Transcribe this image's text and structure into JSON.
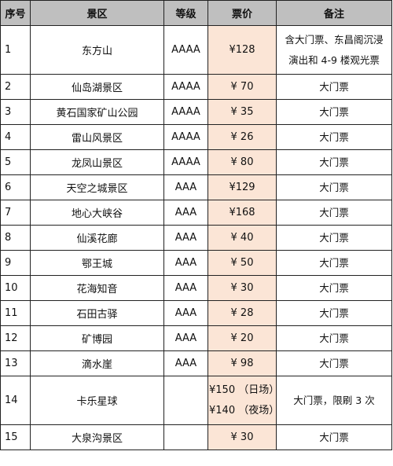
{
  "table": {
    "headers": {
      "no": "序号",
      "name": "景区",
      "level": "等级",
      "price": "票价",
      "note": "备注"
    },
    "rows": [
      {
        "no": "1",
        "name": "东方山",
        "level": "AAAA",
        "price": [
          "¥128"
        ],
        "note": [
          "含大门票、东昌阁沉浸",
          "演出和 4-9 楼观光票"
        ]
      },
      {
        "no": "2",
        "name": "仙岛湖景区",
        "level": "AAAA",
        "price": [
          "¥ 70"
        ],
        "note": [
          "大门票"
        ]
      },
      {
        "no": "3",
        "name": "黄石国家矿山公园",
        "level": "AAAA",
        "price": [
          "¥ 35"
        ],
        "note": [
          "大门票"
        ]
      },
      {
        "no": "4",
        "name": "雷山风景区",
        "level": "AAAA",
        "price": [
          "¥ 26"
        ],
        "note": [
          "大门票"
        ]
      },
      {
        "no": "5",
        "name": "龙凤山景区",
        "level": "AAAA",
        "price": [
          "¥ 80"
        ],
        "note": [
          "大门票"
        ]
      },
      {
        "no": "6",
        "name": "天空之城景区",
        "level": "AAA",
        "price": [
          "¥129"
        ],
        "note": [
          "大门票"
        ]
      },
      {
        "no": "7",
        "name": "地心大峡谷",
        "level": "AAA",
        "price": [
          "¥168"
        ],
        "note": [
          "大门票"
        ]
      },
      {
        "no": "8",
        "name": "仙溪花廊",
        "level": "AAA",
        "price": [
          "¥ 40"
        ],
        "note": [
          "大门票"
        ]
      },
      {
        "no": "9",
        "name": "鄂王城",
        "level": "AAA",
        "price": [
          "¥ 50"
        ],
        "note": [
          "大门票"
        ]
      },
      {
        "no": "10",
        "name": "花海知音",
        "level": "AAA",
        "price": [
          "¥ 30"
        ],
        "note": [
          "大门票"
        ]
      },
      {
        "no": "11",
        "name": "石田古驿",
        "level": "AAA",
        "price": [
          "¥ 28"
        ],
        "note": [
          "大门票"
        ]
      },
      {
        "no": "12",
        "name": "矿博园",
        "level": "AAA",
        "price": [
          "¥ 20"
        ],
        "note": [
          "大门票"
        ]
      },
      {
        "no": "13",
        "name": "滴水崖",
        "level": "AAA",
        "price": [
          "¥ 98"
        ],
        "note": [
          "大门票"
        ]
      },
      {
        "no": "14",
        "name": "卡乐星球",
        "level": "",
        "price": [
          "¥150 （日场）",
          "¥140 （夜场）"
        ],
        "note": [
          "大门票，限刷 3 次"
        ]
      },
      {
        "no": "15",
        "name": "大泉沟景区",
        "level": "",
        "price": [
          "¥ 30"
        ],
        "note": [
          "大门票"
        ]
      }
    ]
  },
  "colors": {
    "header_bg": "#bfbfbf",
    "price_bg": "#fbe5d6",
    "border": "#222222"
  }
}
